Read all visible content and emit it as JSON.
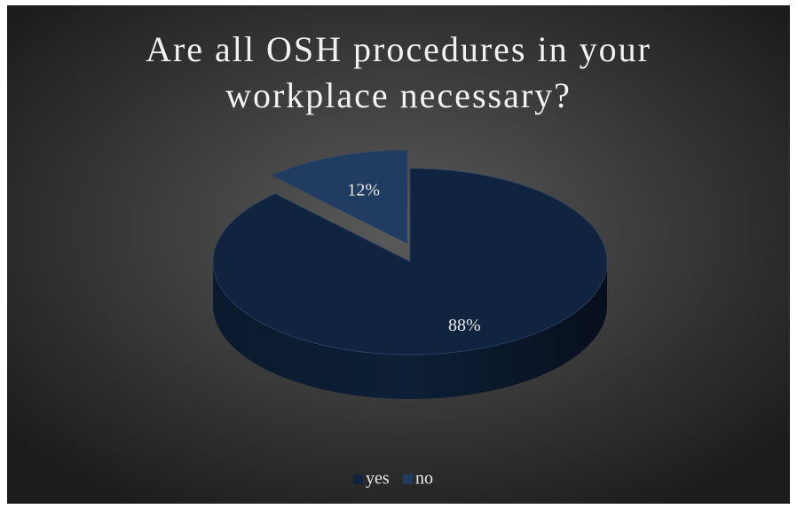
{
  "chart_data": {
    "type": "pie",
    "title": "Are all OSH procedures in your workplace necessary?",
    "categories": [
      "yes",
      "no"
    ],
    "values": [
      88,
      12
    ],
    "value_labels": [
      "88%",
      "12%"
    ],
    "colors": [
      "#10233f",
      "#203c61"
    ],
    "legend": "bottom"
  }
}
